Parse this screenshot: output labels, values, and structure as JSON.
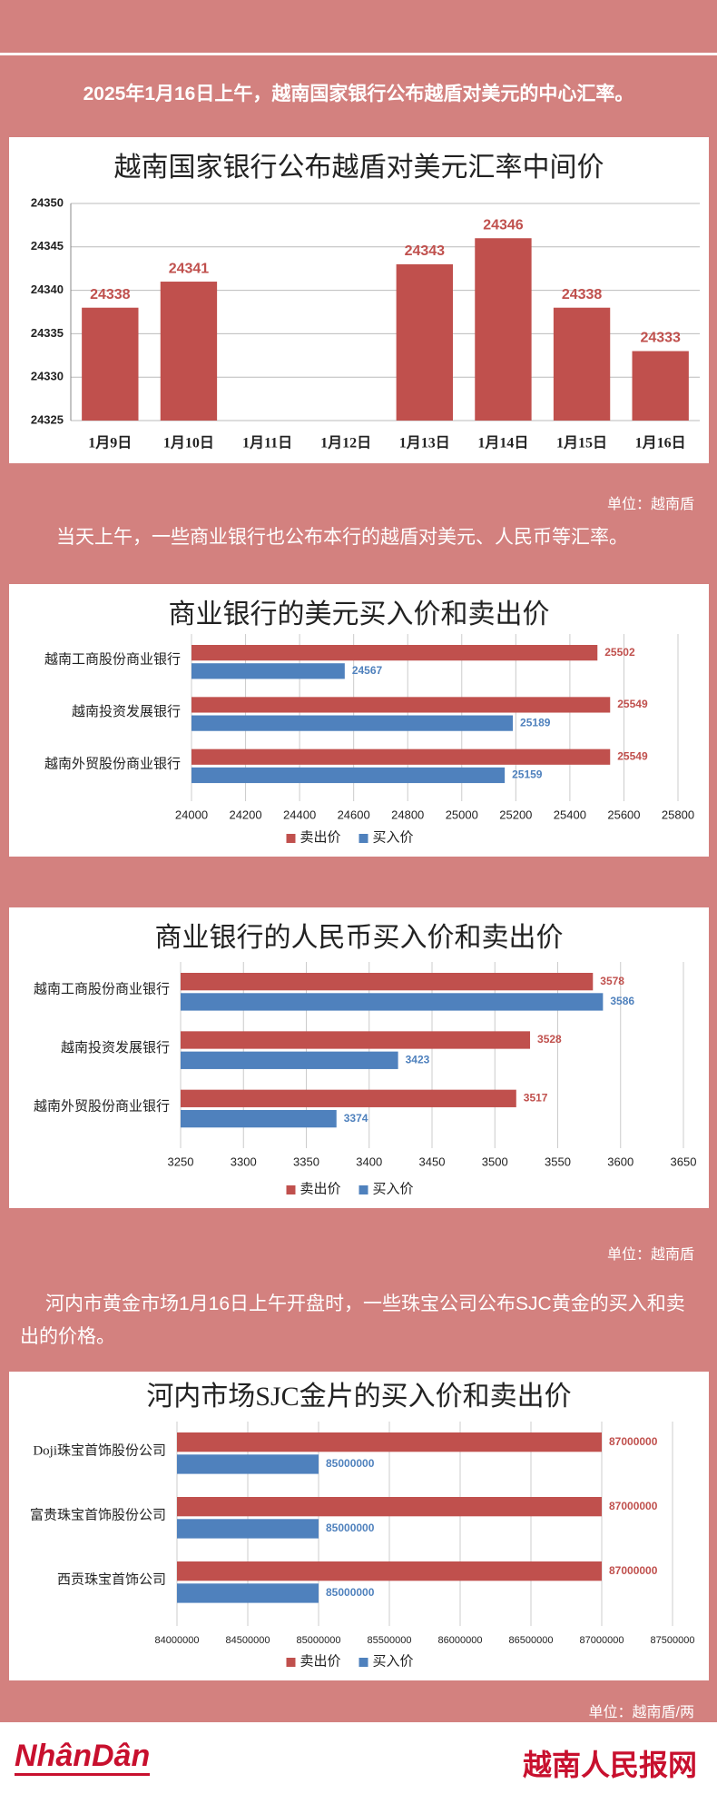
{
  "texts": {
    "intro1": "2025年1月16日上午，越南国家银行公布越盾对美元的中心汇率。",
    "unit1": "单位：越南盾",
    "intro2": "当天上午，一些商业银行也公布本行的越盾对美元、人民币等汇率。",
    "unit2": "单位：越南盾",
    "intro3": "河内市黄金市场1月16日上午开盘时，一些珠宝公司公布SJC黄金的买入和卖出的价格。",
    "unit3": "单位：越南盾/两"
  },
  "footer": {
    "logo_left": "NhânDân",
    "logo_right": "越南人民报网"
  },
  "chart_data": [
    {
      "type": "bar",
      "title": "越南国家银行公布越盾对美元汇率中间价",
      "categories": [
        "1月9日",
        "1月10日",
        "1月11日",
        "1月12日",
        "1月13日",
        "1月14日",
        "1月15日",
        "1月16日"
      ],
      "values": [
        24338,
        24341,
        null,
        null,
        24343,
        24346,
        24338,
        24333
      ],
      "color": "#c0504d",
      "ylim": [
        24325,
        24350
      ],
      "yticks": [
        24325,
        24330,
        24335,
        24340,
        24345,
        24350
      ],
      "grid": true
    },
    {
      "type": "hbar",
      "title": "商业银行的美元买入价和卖出价",
      "categories": [
        "越南工商股份商业银行",
        "越南投资发展银行",
        "越南外贸股份商业银行"
      ],
      "series": [
        {
          "name": "卖出价",
          "color": "#c0504d",
          "values": [
            25502,
            25549,
            25549
          ]
        },
        {
          "name": "买入价",
          "color": "#4f81bd",
          "values": [
            24567,
            25189,
            25159
          ]
        }
      ],
      "xlim": [
        24000,
        25800
      ],
      "xticks": [
        24000,
        24200,
        24400,
        24600,
        24800,
        25000,
        25200,
        25400,
        25600,
        25800
      ],
      "grid": true,
      "legend": "bottom"
    },
    {
      "type": "hbar",
      "title": "商业银行的人民币买入价和卖出价",
      "categories": [
        "越南工商股份商业银行",
        "越南投资发展银行",
        "越南外贸股份商业银行"
      ],
      "series": [
        {
          "name": "卖出价",
          "color": "#c0504d",
          "values": [
            3578,
            3528,
            3517
          ]
        },
        {
          "name": "买入价",
          "color": "#4f81bd",
          "values": [
            3586,
            3423,
            3374
          ]
        }
      ],
      "xlim": [
        3250,
        3650
      ],
      "xticks": [
        3250,
        3300,
        3350,
        3400,
        3450,
        3500,
        3550,
        3600,
        3650
      ],
      "grid": true,
      "legend": "bottom"
    },
    {
      "type": "hbar",
      "title": "河内市场SJC金片的买入价和卖出价",
      "categories": [
        "Doji珠宝首饰股份公司",
        "富贵珠宝首饰股份公司",
        "西贡珠宝首饰公司"
      ],
      "series": [
        {
          "name": "卖出价",
          "color": "#c0504d",
          "values": [
            87000000,
            87000000,
            87000000
          ]
        },
        {
          "name": "买入价",
          "color": "#4f81bd",
          "values": [
            85000000,
            85000000,
            85000000
          ]
        }
      ],
      "xlim": [
        84000000,
        87500000
      ],
      "xticks": [
        84000000,
        84500000,
        85000000,
        85500000,
        86000000,
        86500000,
        87000000,
        87500000
      ],
      "grid": true,
      "legend": "bottom"
    }
  ]
}
